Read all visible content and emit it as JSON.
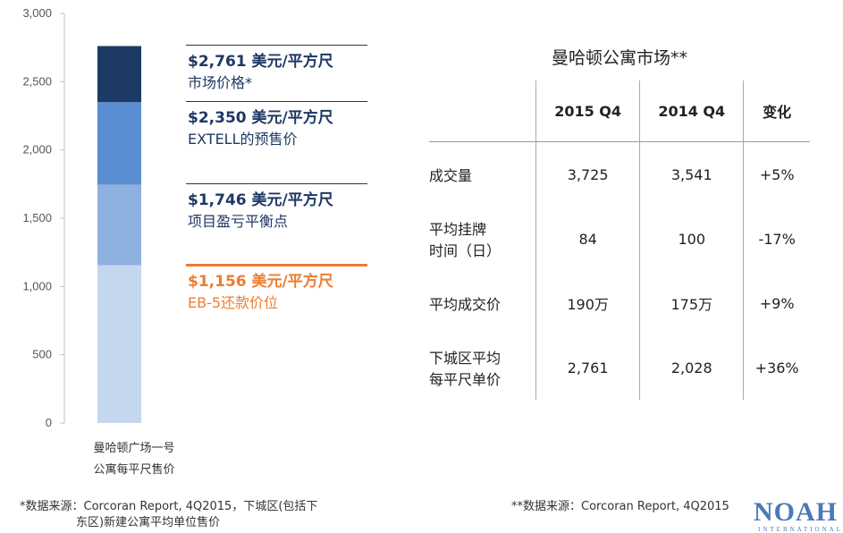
{
  "chart_data": {
    "type": "bar",
    "stacked": true,
    "categories": [
      "曼哈顿广场一号公寓每平尺售价"
    ],
    "category_lines": [
      "曼哈顿广场一号",
      "公寓每平尺售价"
    ],
    "segments": [
      {
        "value": 1156,
        "color": "#c5d7ef"
      },
      {
        "value": 1746,
        "color": "#8fb1df"
      },
      {
        "value": 2350,
        "color": "#5a8ed3"
      },
      {
        "value": 2761,
        "color": "#1c3a64"
      }
    ],
    "yticks": [
      0,
      500,
      1000,
      1500,
      2000,
      2500,
      3000
    ],
    "ytick_labels": [
      "0",
      "500",
      "1,000",
      "1,500",
      "2,000",
      "2,500",
      "3,000"
    ],
    "ylim": [
      0,
      3000
    ],
    "annotations": [
      {
        "value": 2761,
        "price": "$2,761 美元/平方尺",
        "label": "市场价格*"
      },
      {
        "value": 2350,
        "price": "$2,350 美元/平方尺",
        "label": "EXTELL的预售价"
      },
      {
        "value": 1746,
        "price": "$1,746 美元/平方尺",
        "label": "项目盈亏平衡点"
      },
      {
        "value": 1156,
        "price": "$1,156 美元/平方尺",
        "label": "EB-5还款价位",
        "highlight": true
      }
    ]
  },
  "table": {
    "title": "曼哈顿公寓市场**",
    "headers": [
      "",
      "2015 Q4",
      "2014 Q4",
      "变化"
    ],
    "rows": [
      {
        "label": [
          "成交量"
        ],
        "values": [
          "3,725",
          "3,541",
          "+5%"
        ]
      },
      {
        "label": [
          "平均挂牌",
          "时间（日）"
        ],
        "values": [
          "84",
          "100",
          "-17%"
        ]
      },
      {
        "label": [
          "平均成交价"
        ],
        "values": [
          "190万",
          "175万",
          "+9%"
        ]
      },
      {
        "label": [
          "下城区平均",
          "每平尺单价"
        ],
        "values": [
          "2,761",
          "2,028",
          "+36%"
        ]
      }
    ]
  },
  "footnotes": {
    "left_line1": "*数据来源：Corcoran Report, 4Q2015，下城区(包括下",
    "left_line2": "东区)新建公寓平均单位售价",
    "right": "**数据来源：Corcoran Report, 4Q2015"
  },
  "logo": {
    "text": "NOAH",
    "subtext": "INTERNATIONAL"
  },
  "colors": {
    "accent_orange": "#ed7d31",
    "text_navy": "#1f3864",
    "logo_blue": "#4a7ab5"
  }
}
